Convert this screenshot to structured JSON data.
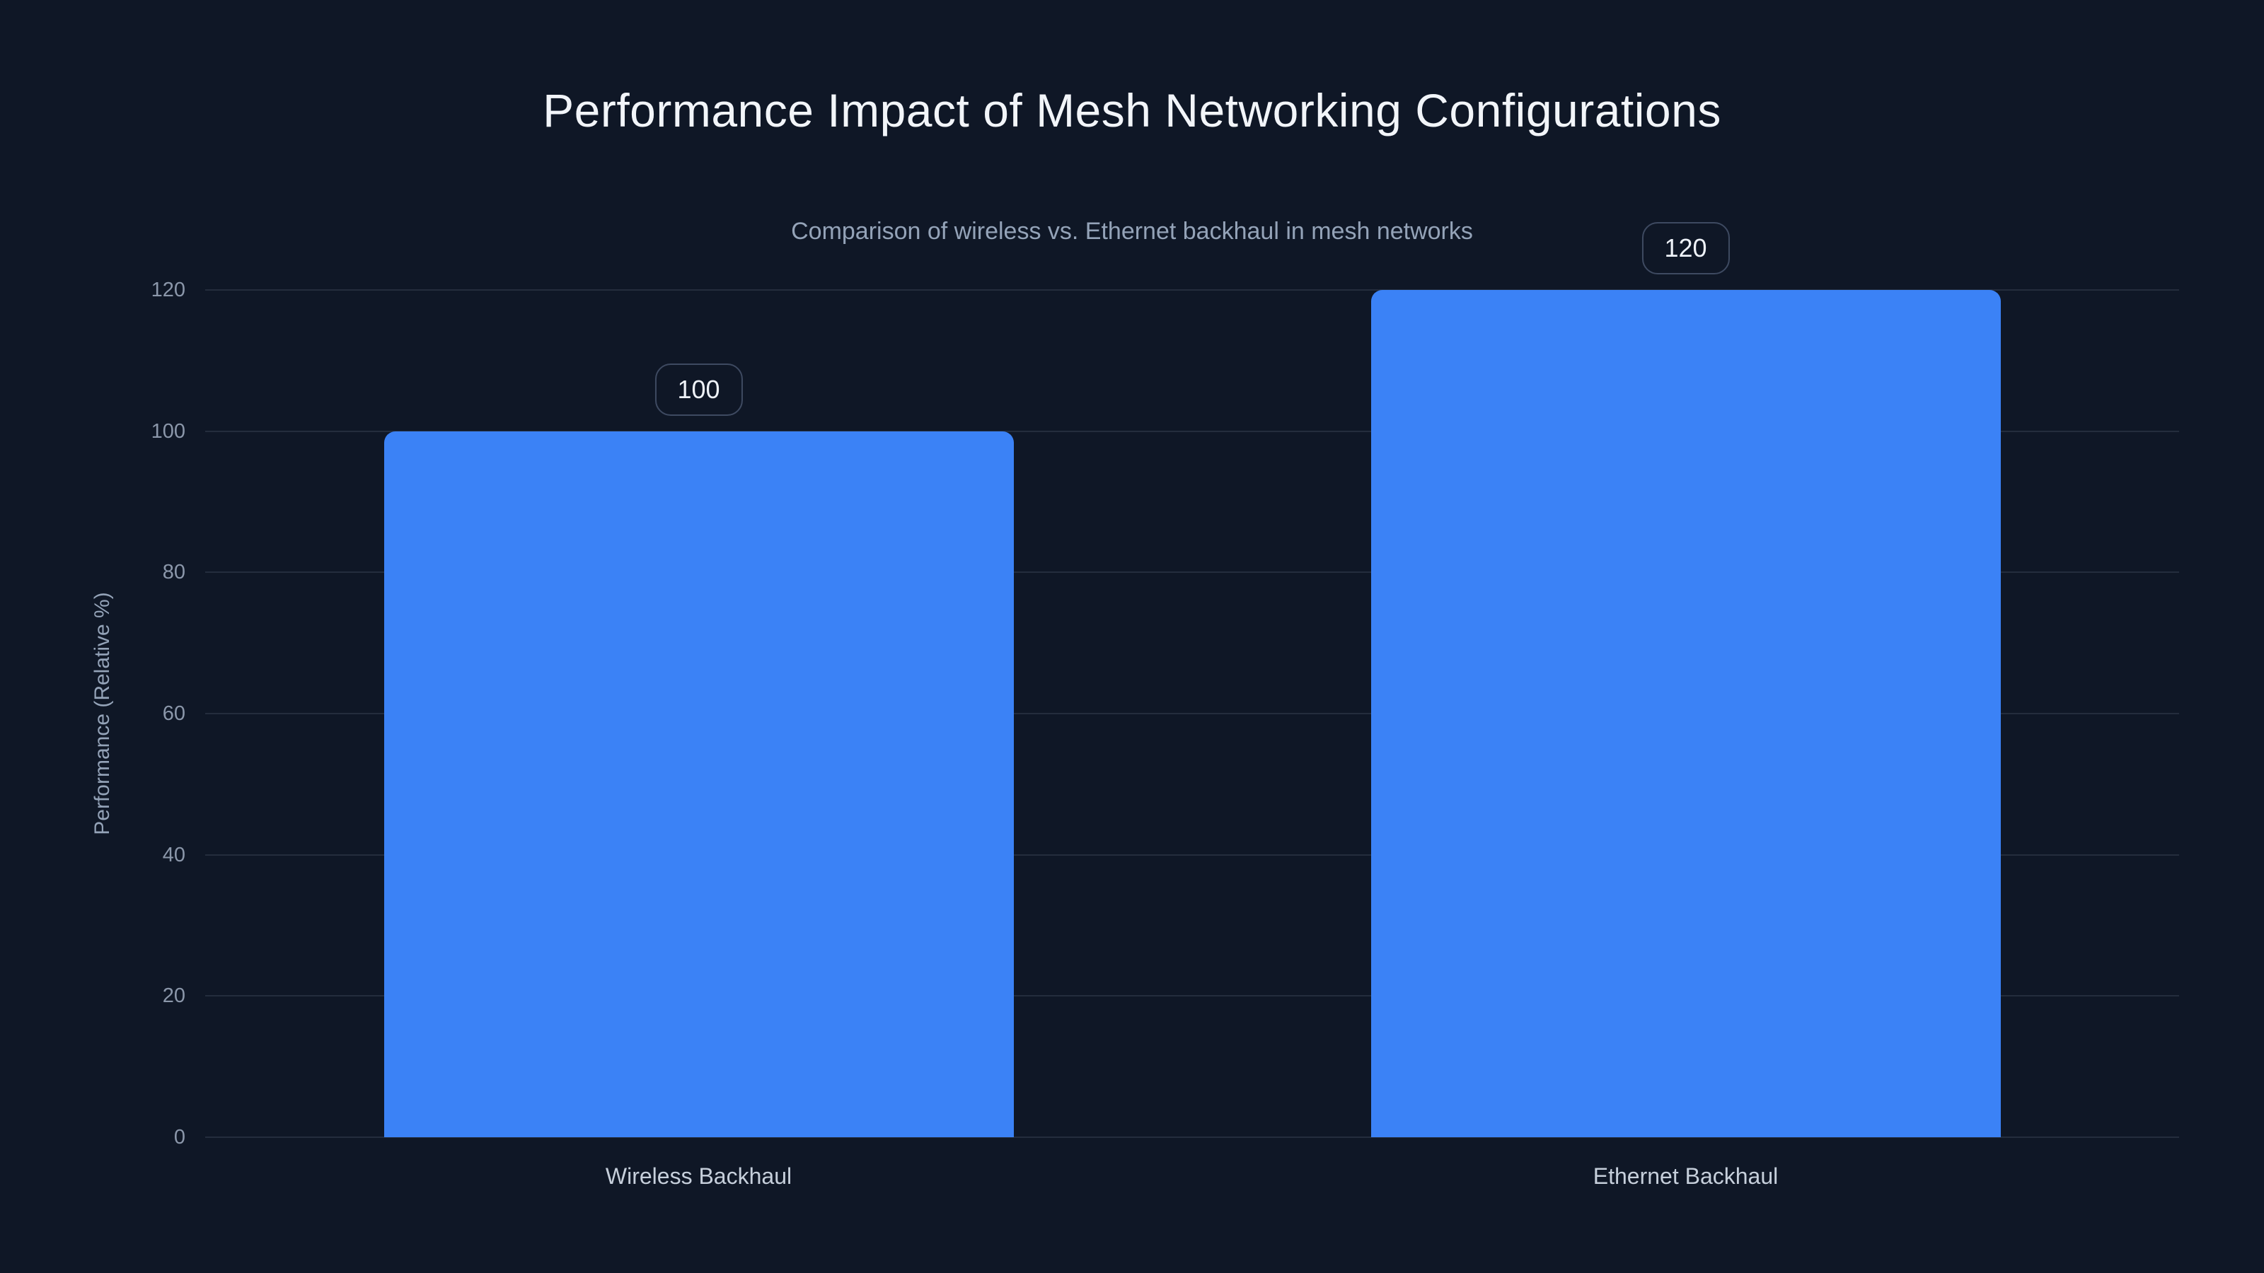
{
  "chart_data": {
    "type": "bar",
    "title": "Performance Impact of Mesh Networking Configurations",
    "subtitle": "Comparison of wireless vs. Ethernet backhaul in mesh networks",
    "categories": [
      "Wireless Backhaul",
      "Ethernet Backhaul"
    ],
    "values": [
      100,
      120
    ],
    "data_labels": [
      "100",
      "120"
    ],
    "xlabel": "",
    "ylabel": "Performance (Relative %)",
    "ylim": [
      0,
      120
    ],
    "yticks": [
      0,
      20,
      40,
      60,
      80,
      100,
      120
    ],
    "grid": "horizontal-only",
    "legend": "none",
    "colors": {
      "background": "#0f1726",
      "bar": "#3b82f6",
      "title_text": "#f2f5f9",
      "subtitle_text": "#94a3b8",
      "tick_text": "#8b97aa",
      "category_text": "#c6cfdb",
      "gridline": "rgba(148,163,184,0.16)",
      "badge_border": "#3e4a61",
      "badge_text": "#eef2f8"
    }
  }
}
